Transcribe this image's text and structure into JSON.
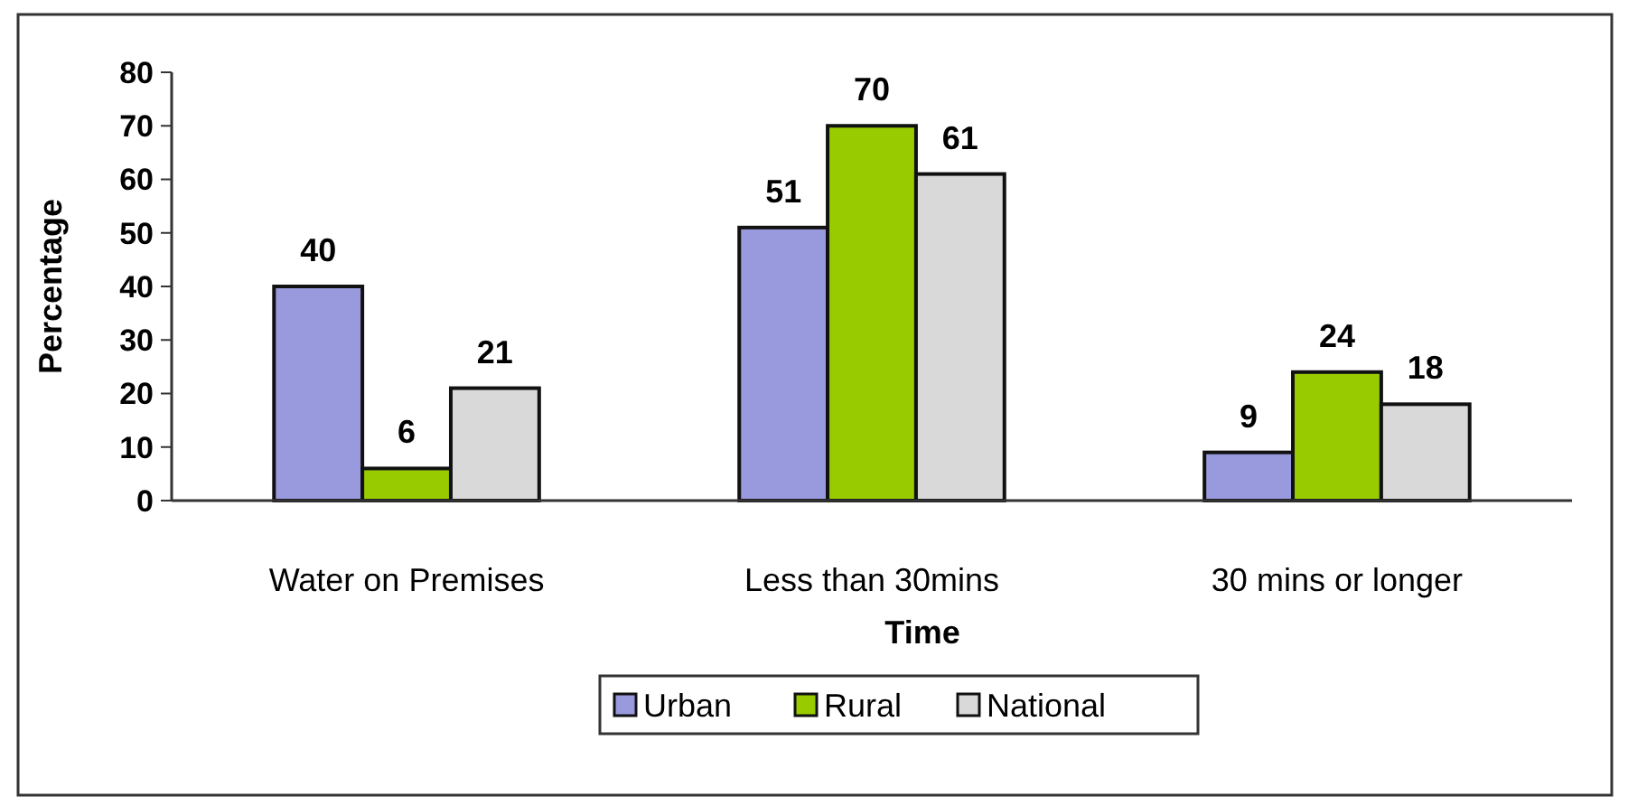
{
  "chart_data": {
    "type": "bar",
    "xlabel": "Time",
    "ylabel": "Percentage",
    "categories": [
      "Water on Premises",
      "Less than 30mins",
      "30 mins or longer"
    ],
    "series": [
      {
        "name": "Urban",
        "color": "#9999dd",
        "values": [
          40,
          51,
          9
        ]
      },
      {
        "name": "Rural",
        "color": "#99cc00",
        "values": [
          6,
          70,
          24
        ]
      },
      {
        "name": "National",
        "color": "#d9d9d9",
        "values": [
          21,
          61,
          18
        ]
      }
    ],
    "ylim": [
      0,
      80
    ],
    "yticks": [
      0,
      10,
      20,
      30,
      40,
      50,
      60,
      70,
      80
    ],
    "data_labels": true,
    "legend": "bottom",
    "grid": false
  }
}
